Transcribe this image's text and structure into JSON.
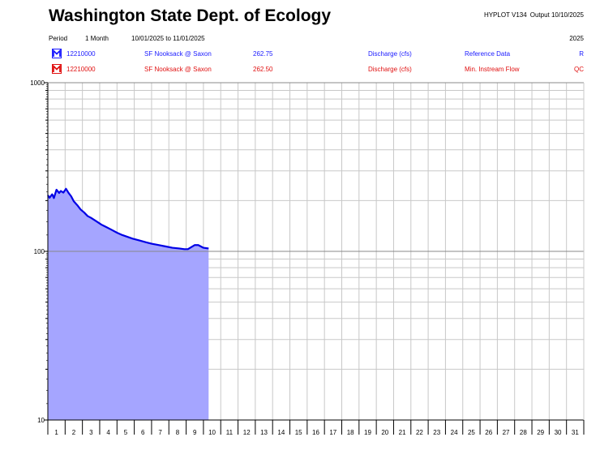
{
  "header": {
    "title": "Washington State Dept. of Ecology",
    "app": "HYPLOT V134",
    "output": "Output 10/10/2025",
    "period_label": "Period",
    "period_length": "1 Month",
    "period_range": "10/01/2025  to  11/01/2025",
    "year": "2025"
  },
  "series_rows": [
    {
      "id": "12210000",
      "station": "SF Nooksack @ Saxon",
      "value": "262.75",
      "param": "Discharge (cfs)",
      "dataset": "Reference Data",
      "flag": "R",
      "color": "#1a1aff",
      "icon": "blue-m-icon"
    },
    {
      "id": "12210000",
      "station": "SF Nooksack @ Saxon",
      "value": "262.50",
      "param": "Discharge (cfs)",
      "dataset": "Min. Instream Flow",
      "flag": "QC",
      "color": "#e01010",
      "icon": "red-m-icon"
    }
  ],
  "chart_data": {
    "type": "area",
    "ylog": true,
    "ylim": [
      10,
      1000
    ],
    "xlim": [
      1,
      32
    ],
    "y_tick_labels": [
      "1000",
      "100",
      "10"
    ],
    "x_tick_labels": [
      "1",
      "2",
      "3",
      "4",
      "5",
      "6",
      "7",
      "8",
      "9",
      "10",
      "11",
      "12",
      "13",
      "14",
      "15",
      "16",
      "17",
      "18",
      "19",
      "20",
      "21",
      "22",
      "23",
      "24",
      "25",
      "26",
      "27",
      "28",
      "29",
      "30",
      "31"
    ],
    "grid": true,
    "fill_color": "#a5a5ff",
    "line_color": "#0000e6",
    "series": [
      {
        "x": [
          1.0,
          1.1,
          1.25,
          1.35,
          1.5,
          1.65,
          1.75,
          1.9,
          2.05,
          2.2,
          2.35,
          2.5,
          2.7,
          2.9,
          3.1,
          3.3,
          3.5,
          3.8,
          4.1,
          4.4,
          4.7,
          5.0,
          5.3,
          5.6,
          5.9,
          6.3,
          6.7,
          7.0,
          7.4,
          7.8,
          8.2,
          8.6,
          8.9,
          9.1,
          9.5,
          9.7,
          10.0,
          10.3
        ],
        "y": [
          215,
          208,
          218,
          207,
          232,
          222,
          228,
          223,
          235,
          222,
          212,
          198,
          188,
          177,
          170,
          162,
          158,
          151,
          144,
          139,
          134,
          129,
          125,
          122,
          119,
          116,
          113,
          111,
          109,
          107,
          105,
          104,
          103,
          103,
          109,
          109,
          105,
          104
        ]
      }
    ]
  }
}
